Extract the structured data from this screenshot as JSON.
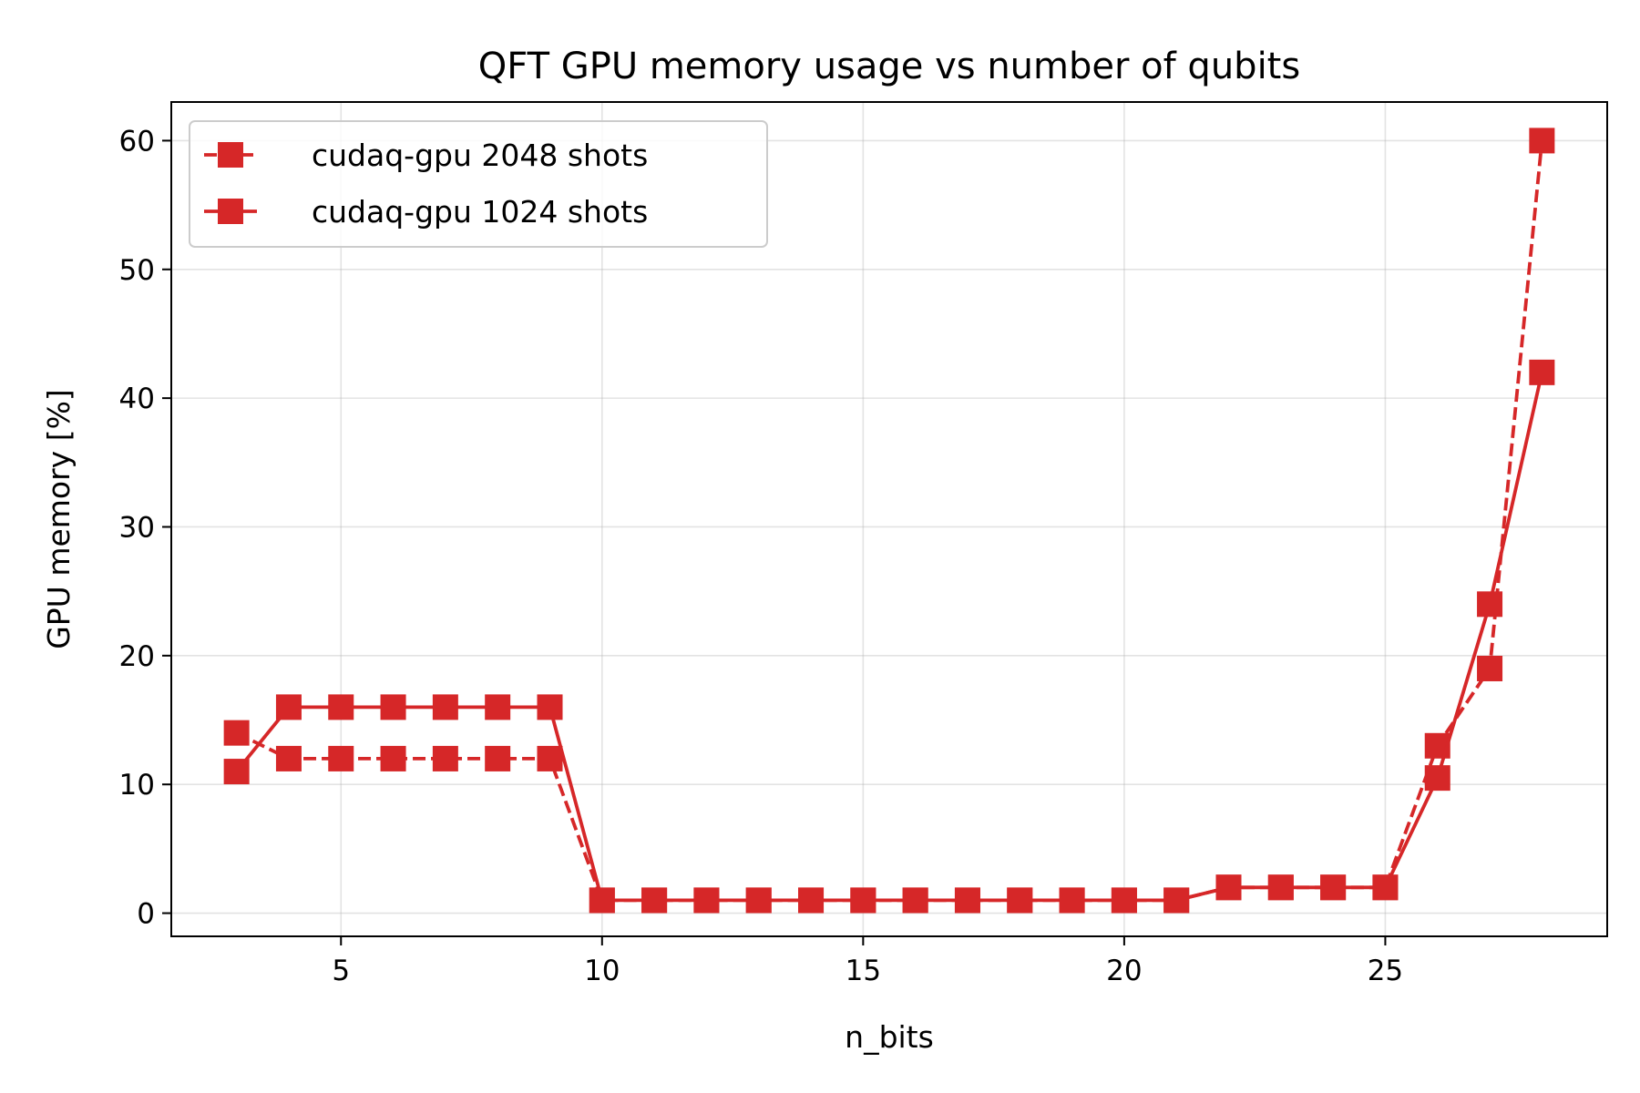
{
  "chart_data": {
    "type": "line",
    "title": "QFT  GPU memory usage vs number of qubits",
    "xlabel": "n_bits",
    "ylabel": "GPU memory [%]",
    "xlim": [
      1.75,
      29.25
    ],
    "ylim": [
      -1.8,
      63
    ],
    "xticks": [
      5,
      10,
      15,
      20,
      25
    ],
    "yticks": [
      0,
      10,
      20,
      30,
      40,
      50,
      60
    ],
    "grid": true,
    "legend_position": "upper-left",
    "x": [
      3,
      4,
      5,
      6,
      7,
      8,
      9,
      10,
      11,
      12,
      13,
      14,
      15,
      16,
      17,
      18,
      19,
      20,
      21,
      22,
      23,
      24,
      25,
      26,
      27,
      28
    ],
    "series": [
      {
        "name": "cudaq-gpu  2048 shots",
        "color": "#d62728",
        "line_style": "dashed",
        "marker": "square",
        "values": [
          14,
          12,
          12,
          12,
          12,
          12,
          12,
          1,
          1,
          1,
          1,
          1,
          1,
          1,
          1,
          1,
          1,
          1,
          1,
          2,
          2,
          2,
          2,
          13,
          19,
          60
        ]
      },
      {
        "name": "cudaq-gpu  1024 shots",
        "color": "#d62728",
        "line_style": "solid",
        "marker": "square",
        "values": [
          11,
          16,
          16,
          16,
          16,
          16,
          16,
          1,
          1,
          1,
          1,
          1,
          1,
          1,
          1,
          1,
          1,
          1,
          1,
          2,
          2,
          2,
          2,
          10.5,
          24,
          42
        ]
      }
    ]
  }
}
